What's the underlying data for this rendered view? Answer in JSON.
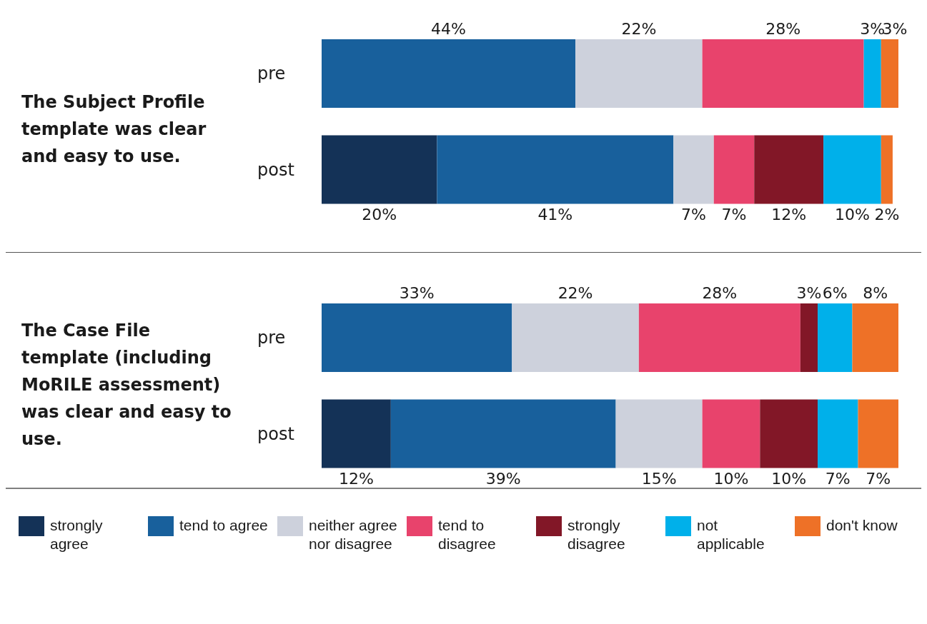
{
  "chart_data": [
    {
      "type": "bar",
      "title": "The Subject Profile template was clear and easy to use.",
      "orientation": "horizontal",
      "stacked": true,
      "categories": [
        "pre",
        "post"
      ],
      "tick_labels": "y",
      "legend": false,
      "series": [
        {
          "color": "#143257",
          "values": [
            null,
            20
          ],
          "value_labels": [
            null,
            "20%"
          ]
        },
        {
          "color": "#18609c",
          "values": [
            44,
            41
          ],
          "value_labels": [
            "44%",
            "41%"
          ]
        },
        {
          "color": "#cdd1dc",
          "values": [
            22,
            7
          ],
          "value_labels": [
            "22%",
            "7%"
          ]
        },
        {
          "color": "#e8436c",
          "values": [
            28,
            7
          ],
          "value_labels": [
            "28%",
            "7%"
          ]
        },
        {
          "color": "#821727",
          "values": [
            null,
            12
          ],
          "value_labels": [
            null,
            "12%"
          ]
        },
        {
          "color": "#00b0ea",
          "values": [
            3,
            10
          ],
          "value_labels": [
            "3%",
            "10%"
          ]
        },
        {
          "color": "#ee7127",
          "values": [
            3,
            2
          ],
          "value_labels": [
            "3%",
            "2%"
          ]
        }
      ]
    },
    {
      "type": "bar",
      "title": "The Case File template (including MoRILE assessment) was clear and easy to use.",
      "orientation": "horizontal",
      "stacked": true,
      "categories": [
        "pre",
        "post"
      ],
      "tick_labels": "y",
      "legend": "bottom",
      "series": [
        {
          "name": "strongly agree",
          "color": "#143257",
          "values": [
            null,
            12
          ],
          "value_labels": [
            null,
            "12%"
          ]
        },
        {
          "name": "tend to agree",
          "color": "#18609c",
          "values": [
            33,
            39
          ],
          "value_labels": [
            "33%",
            "39%"
          ]
        },
        {
          "name": "neither agree nor disagree",
          "color": "#cdd1dc",
          "values": [
            22,
            15
          ],
          "value_labels": [
            "22%",
            "15%"
          ]
        },
        {
          "name": "tend to disagree",
          "color": "#e8436c",
          "values": [
            28,
            10
          ],
          "value_labels": [
            "28%",
            "10%"
          ]
        },
        {
          "name": "strongly disagree",
          "color": "#821727",
          "values": [
            3,
            10
          ],
          "value_labels": [
            "3%",
            "10%"
          ]
        },
        {
          "name": "not applicable",
          "color": "#00b0ea",
          "values": [
            6,
            7
          ],
          "value_labels": [
            "6%",
            "7%"
          ]
        },
        {
          "name": "don't know",
          "color": "#ee7127",
          "values": [
            8,
            7
          ],
          "value_labels": [
            "8%",
            "7%"
          ]
        }
      ]
    }
  ]
}
